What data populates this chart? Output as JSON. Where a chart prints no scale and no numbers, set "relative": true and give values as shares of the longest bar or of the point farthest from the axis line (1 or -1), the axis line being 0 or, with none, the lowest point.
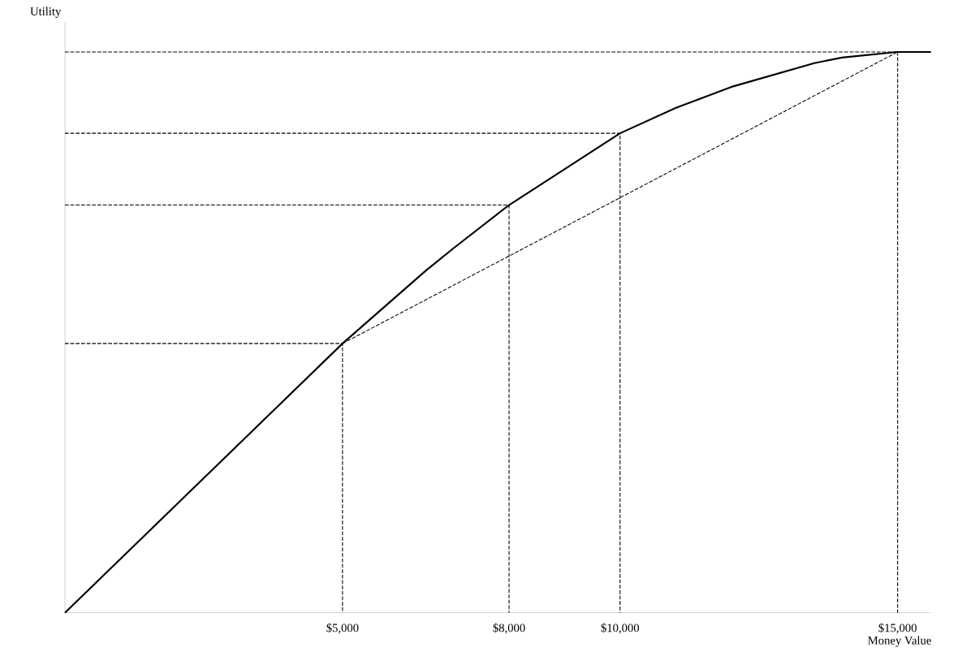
{
  "chart_data": {
    "type": "line",
    "xlabel": "Money Value",
    "ylabel": "Utility",
    "relative": true,
    "xlim": [
      0,
      15600
    ],
    "xticks": [
      {
        "value": 5000,
        "label": "$5,000"
      },
      {
        "value": 8000,
        "label": "$8,000"
      },
      {
        "value": 10000,
        "label": "$10,000"
      },
      {
        "value": 15000,
        "label": "$15,000"
      }
    ],
    "series": [
      {
        "color": "#000000",
        "line_style": "solid",
        "x": [
          0,
          5000,
          6500,
          7000,
          8000,
          9000,
          10000,
          11000,
          12000,
          13500,
          14000,
          15000,
          15600
        ],
        "values": [
          0,
          0.48,
          0.61,
          0.65,
          0.727,
          0.791,
          0.855,
          0.9,
          0.9375,
          0.98,
          0.99,
          1,
          1
        ]
      },
      {
        "color": "#000000",
        "line_style": "dashed",
        "x": [
          5000,
          15000
        ],
        "values": [
          0.48,
          1
        ]
      },
      {
        "color": "#000000",
        "line_style": "dashed",
        "x": [
          0,
          5000,
          5000
        ],
        "values": [
          0.48,
          0.48,
          0
        ]
      },
      {
        "color": "#000000",
        "line_style": "dashed",
        "x": [
          0,
          8000,
          8000
        ],
        "values": [
          0.727,
          0.727,
          0
        ]
      },
      {
        "color": "#000000",
        "line_style": "dashed",
        "x": [
          0,
          10000,
          10000
        ],
        "values": [
          0.855,
          0.855,
          0
        ]
      },
      {
        "color": "#000000",
        "line_style": "dashed",
        "x": [
          0,
          15000
        ],
        "values": [
          1,
          1
        ]
      },
      {
        "color": "#000000",
        "line_style": "dashed",
        "x": [
          15000,
          15000
        ],
        "values": [
          1,
          0
        ]
      }
    ]
  }
}
